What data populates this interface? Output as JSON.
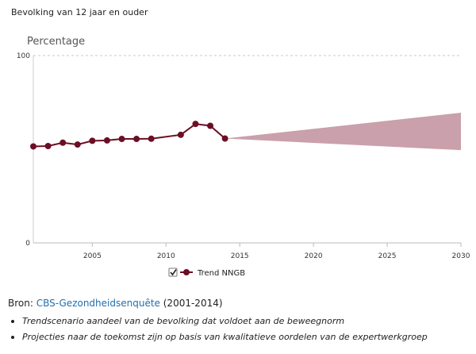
{
  "header": {
    "subtitle": "Bevolking van 12 jaar en ouder"
  },
  "chart_data": {
    "type": "line",
    "ylabel": "Percentage",
    "ylim": [
      0,
      100
    ],
    "xlim": [
      2001,
      2030
    ],
    "y_ticks": [
      "0",
      "100"
    ],
    "x_ticks": [
      "2005",
      "2010",
      "2015",
      "2020",
      "2025",
      "2030"
    ],
    "grid": "dashed line at 100",
    "legend_position": "bottom-center",
    "series": [
      {
        "name": "Trend NNGB",
        "color": "#6b0f24",
        "x": [
          2001,
          2002,
          2003,
          2004,
          2005,
          2006,
          2007,
          2008,
          2009,
          2011,
          2012,
          2013,
          2014
        ],
        "values": [
          51.5,
          51.7,
          53.5,
          52.5,
          54.5,
          54.7,
          55.5,
          55.5,
          55.6,
          57.7,
          63.5,
          62.5,
          55.7
        ]
      }
    ],
    "projection": {
      "color": "#c9a0ab",
      "x": [
        2014,
        2030
      ],
      "upper": [
        55.7,
        69.5
      ],
      "lower": [
        55.7,
        49.5
      ]
    }
  },
  "legend": {
    "checked": true,
    "label": "Trend NNGB"
  },
  "source": {
    "prefix": "Bron: ",
    "link": "CBS-Gezondheidsenquête",
    "suffix": " (2001-2014)"
  },
  "notes": [
    "Trendscenario aandeel van de bevolking dat voldoet aan de beweegnorm",
    "Projecties naar de toekomst zijn op basis van kwalitatieve oordelen van de expertwerkgroep"
  ]
}
